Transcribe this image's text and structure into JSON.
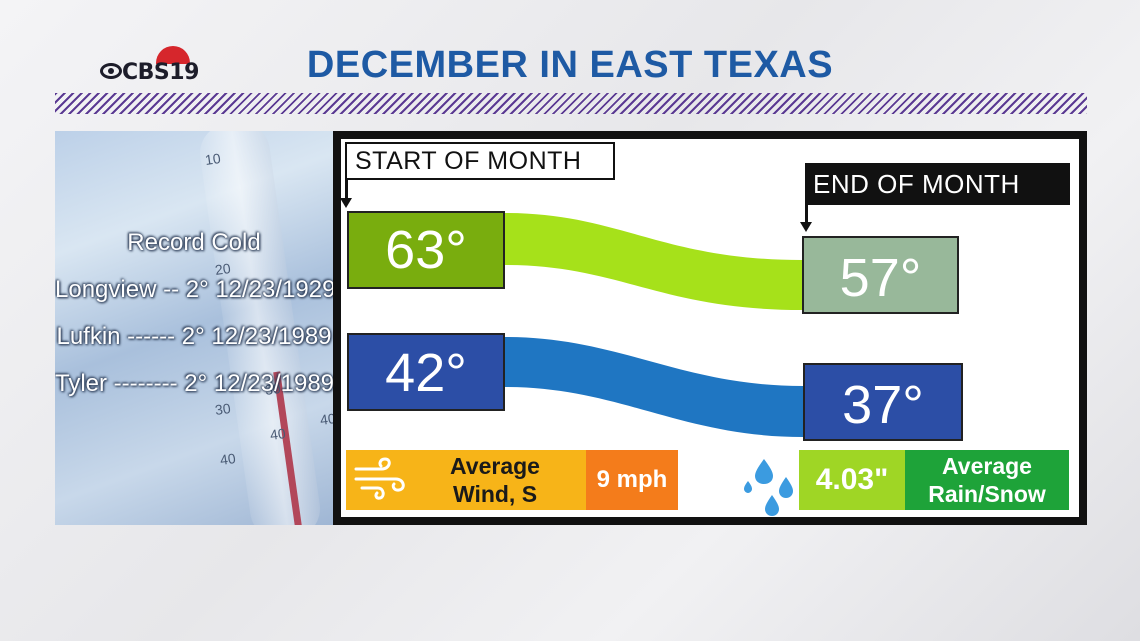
{
  "header": {
    "title": "DECEMBER IN EAST TEXAS",
    "logo_text": "CBS19"
  },
  "record_cold": {
    "heading": "Record Cold",
    "rows": [
      "Longview -- 2° 12/23/1929",
      "Lufkin ------ 2°  12/23/1989",
      "Tyler -------- 2°  12/23/1989"
    ]
  },
  "photo_numbers": [
    "10",
    "20",
    "30",
    "40",
    "30",
    "40",
    "40"
  ],
  "labels": {
    "start": "START OF MONTH",
    "end": "END OF MONTH"
  },
  "temps": {
    "high_start": "63°",
    "high_end": "57°",
    "low_start": "42°",
    "low_end": "37°"
  },
  "wind": {
    "label": "Average Wind, S",
    "label_line1": "Average",
    "label_line2": "Wind, S",
    "speed": "9 mph"
  },
  "rain": {
    "value": "4.03\"",
    "label_line1": "Average",
    "label_line2": "Rain/Snow"
  },
  "colors": {
    "title": "#1e5aa4",
    "high_start": "#79ad0e",
    "high_end": "#98b89a",
    "high_ribbon": "#a6e11a",
    "low_box": "#2c4ea6",
    "low_ribbon": "#1f76c2",
    "wind": "#f7b418",
    "wind_speed": "#f47c1b",
    "rain_value": "#9fd625",
    "rain_label": "#1ea339"
  }
}
